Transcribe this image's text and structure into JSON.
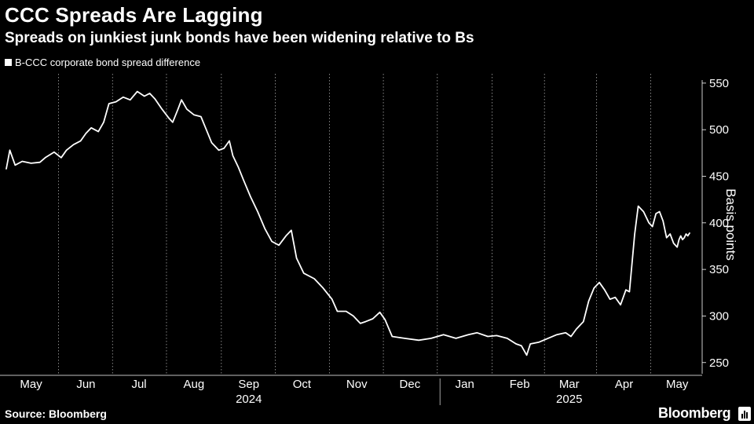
{
  "header": {
    "title": "CCC Spreads Are Lagging",
    "subtitle": "Spreads on junkiest junk bonds have been widening relative to Bs"
  },
  "legend": {
    "label": "B-CCC corporate bond spread difference"
  },
  "footer": {
    "source": "Source: Bloomberg",
    "brand": "Bloomberg"
  },
  "colors": {
    "background": "#000000",
    "line": "#ffffff",
    "grid": "#ffffff"
  },
  "chart_data": {
    "type": "line",
    "title": "CCC Spreads Are Lagging",
    "ylabel": "Basis points",
    "ylim": [
      238,
      560
    ],
    "yticks": [
      250,
      300,
      350,
      400,
      450,
      500,
      550
    ],
    "x_range": [
      "2024-05-01",
      "2025-05-22"
    ],
    "month_ticks": [
      {
        "label": "May",
        "date": "2024-05-15"
      },
      {
        "label": "Jun",
        "date": "2024-06-15"
      },
      {
        "label": "Jul",
        "date": "2024-07-15"
      },
      {
        "label": "Aug",
        "date": "2024-08-15"
      },
      {
        "label": "Sep",
        "date": "2024-09-15"
      },
      {
        "label": "Oct",
        "date": "2024-10-15"
      },
      {
        "label": "Nov",
        "date": "2024-11-15"
      },
      {
        "label": "Dec",
        "date": "2024-12-15"
      },
      {
        "label": "Jan",
        "date": "2025-01-15"
      },
      {
        "label": "Feb",
        "date": "2025-02-15"
      },
      {
        "label": "Mar",
        "date": "2025-03-15"
      },
      {
        "label": "Apr",
        "date": "2025-04-15"
      },
      {
        "label": "May",
        "date": "2025-05-15"
      }
    ],
    "year_labels": [
      {
        "label": "2024",
        "date": "2024-09-15"
      },
      {
        "label": "2025",
        "date": "2025-03-15"
      }
    ],
    "year_divider": "2025-01-01",
    "grid": "vertical dashed at month boundaries",
    "legend_position": "top-left",
    "series": [
      {
        "name": "B-CCC corporate bond spread difference",
        "points": [
          [
            "2024-05-01",
            458
          ],
          [
            "2024-05-03",
            478
          ],
          [
            "2024-05-06",
            462
          ],
          [
            "2024-05-10",
            466
          ],
          [
            "2024-05-15",
            464
          ],
          [
            "2024-05-20",
            465
          ],
          [
            "2024-05-23",
            470
          ],
          [
            "2024-05-28",
            476
          ],
          [
            "2024-06-01",
            470
          ],
          [
            "2024-06-04",
            478
          ],
          [
            "2024-06-08",
            484
          ],
          [
            "2024-06-12",
            488
          ],
          [
            "2024-06-15",
            496
          ],
          [
            "2024-06-18",
            502
          ],
          [
            "2024-06-22",
            498
          ],
          [
            "2024-06-25",
            508
          ],
          [
            "2024-06-28",
            528
          ],
          [
            "2024-07-02",
            530
          ],
          [
            "2024-07-06",
            535
          ],
          [
            "2024-07-10",
            532
          ],
          [
            "2024-07-14",
            541
          ],
          [
            "2024-07-18",
            536
          ],
          [
            "2024-07-21",
            539
          ],
          [
            "2024-07-24",
            533
          ],
          [
            "2024-07-28",
            522
          ],
          [
            "2024-08-01",
            512
          ],
          [
            "2024-08-03",
            508
          ],
          [
            "2024-08-06",
            522
          ],
          [
            "2024-08-08",
            532
          ],
          [
            "2024-08-11",
            522
          ],
          [
            "2024-08-15",
            516
          ],
          [
            "2024-08-19",
            514
          ],
          [
            "2024-08-22",
            500
          ],
          [
            "2024-08-25",
            486
          ],
          [
            "2024-08-29",
            478
          ],
          [
            "2024-09-01",
            480
          ],
          [
            "2024-09-04",
            488
          ],
          [
            "2024-09-06",
            472
          ],
          [
            "2024-09-09",
            460
          ],
          [
            "2024-09-12",
            446
          ],
          [
            "2024-09-16",
            428
          ],
          [
            "2024-09-20",
            412
          ],
          [
            "2024-09-24",
            394
          ],
          [
            "2024-09-28",
            380
          ],
          [
            "2024-10-02",
            376
          ],
          [
            "2024-10-06",
            386
          ],
          [
            "2024-10-09",
            392
          ],
          [
            "2024-10-12",
            362
          ],
          [
            "2024-10-16",
            346
          ],
          [
            "2024-10-22",
            340
          ],
          [
            "2024-10-27",
            330
          ],
          [
            "2024-11-01",
            318
          ],
          [
            "2024-11-04",
            305
          ],
          [
            "2024-11-09",
            305
          ],
          [
            "2024-11-13",
            300
          ],
          [
            "2024-11-17",
            292
          ],
          [
            "2024-11-20",
            294
          ],
          [
            "2024-11-24",
            297
          ],
          [
            "2024-11-28",
            304
          ],
          [
            "2024-12-01",
            296
          ],
          [
            "2024-12-05",
            278
          ],
          [
            "2024-12-12",
            276
          ],
          [
            "2024-12-20",
            274
          ],
          [
            "2024-12-27",
            276
          ],
          [
            "2025-01-03",
            280
          ],
          [
            "2025-01-10",
            276
          ],
          [
            "2025-01-17",
            280
          ],
          [
            "2025-01-22",
            282
          ],
          [
            "2025-01-28",
            278
          ],
          [
            "2025-02-02",
            279
          ],
          [
            "2025-02-08",
            276
          ],
          [
            "2025-02-13",
            270
          ],
          [
            "2025-02-16",
            268
          ],
          [
            "2025-02-19",
            258
          ],
          [
            "2025-02-21",
            270
          ],
          [
            "2025-02-26",
            272
          ],
          [
            "2025-03-03",
            276
          ],
          [
            "2025-03-08",
            280
          ],
          [
            "2025-03-13",
            282
          ],
          [
            "2025-03-16",
            278
          ],
          [
            "2025-03-19",
            286
          ],
          [
            "2025-03-23",
            294
          ],
          [
            "2025-03-26",
            316
          ],
          [
            "2025-03-29",
            330
          ],
          [
            "2025-04-01",
            336
          ],
          [
            "2025-04-04",
            328
          ],
          [
            "2025-04-07",
            318
          ],
          [
            "2025-04-10",
            320
          ],
          [
            "2025-04-13",
            312
          ],
          [
            "2025-04-16",
            328
          ],
          [
            "2025-04-18",
            326
          ],
          [
            "2025-04-21",
            388
          ],
          [
            "2025-04-23",
            418
          ],
          [
            "2025-04-26",
            412
          ],
          [
            "2025-04-29",
            400
          ],
          [
            "2025-05-01",
            396
          ],
          [
            "2025-05-03",
            410
          ],
          [
            "2025-05-05",
            412
          ],
          [
            "2025-05-07",
            402
          ],
          [
            "2025-05-09",
            384
          ],
          [
            "2025-05-11",
            388
          ],
          [
            "2025-05-13",
            378
          ],
          [
            "2025-05-15",
            374
          ],
          [
            "2025-05-16",
            382
          ],
          [
            "2025-05-17",
            386
          ],
          [
            "2025-05-18",
            382
          ],
          [
            "2025-05-19",
            384
          ],
          [
            "2025-05-20",
            388
          ],
          [
            "2025-05-21",
            386
          ],
          [
            "2025-05-22",
            389
          ]
        ]
      }
    ]
  }
}
